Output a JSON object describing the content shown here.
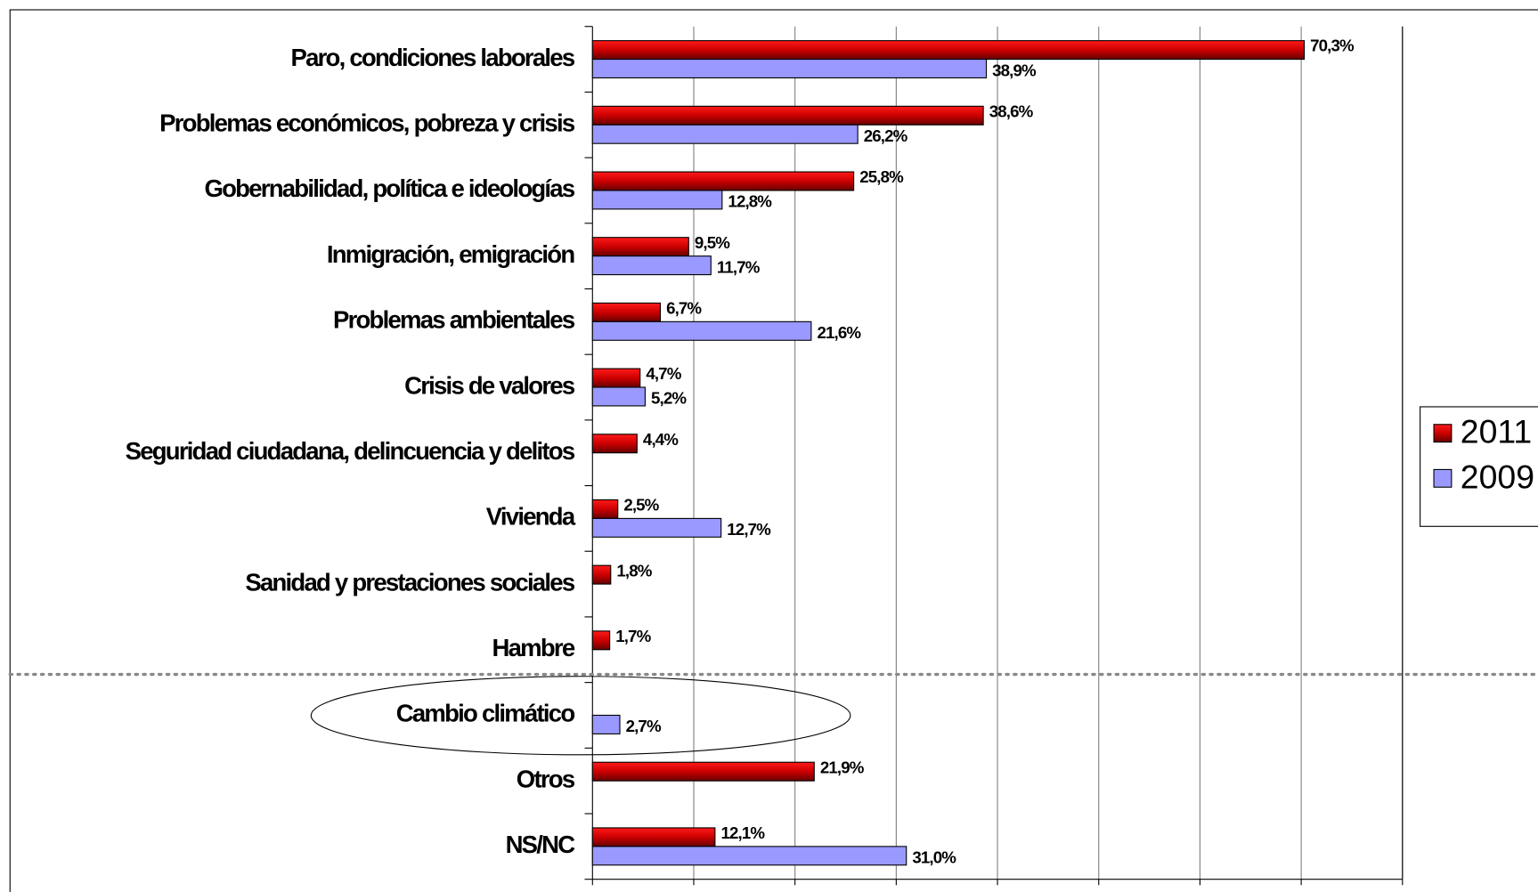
{
  "chart_data": {
    "type": "bar",
    "orientation": "horizontal",
    "categories": [
      "Paro, condiciones laborales",
      "Problemas económicos, pobreza y crisis",
      "Gobernabilidad, política e ideologías",
      "Inmigración, emigración",
      "Problemas ambientales",
      "Crisis de valores",
      "Seguridad ciudadana, delincuencia y delitos",
      "Vivienda",
      "Sanidad y prestaciones sociales",
      "Hambre",
      "Cambio climático",
      "Otros",
      "NS/NC"
    ],
    "series": [
      {
        "name": "2011",
        "color": "#cc0000",
        "values": [
          70.3,
          38.6,
          25.8,
          9.5,
          6.7,
          4.7,
          4.4,
          2.5,
          1.8,
          1.7,
          null,
          21.9,
          12.1
        ],
        "value_labels": [
          "70,3%",
          "38,6%",
          "25,8%",
          "9,5%",
          "6,7%",
          "4,7%",
          "4,4%",
          "2,5%",
          "1,8%",
          "1,7%",
          null,
          "21,9%",
          "12,1%"
        ]
      },
      {
        "name": "2009",
        "color": "#9999ff",
        "values": [
          38.9,
          26.2,
          12.8,
          11.7,
          21.6,
          5.2,
          null,
          12.7,
          null,
          null,
          2.7,
          null,
          31.0
        ],
        "value_labels": [
          "38,9%",
          "26,2%",
          "12,8%",
          "11,7%",
          "21,6%",
          "5,2%",
          null,
          "12,7%",
          null,
          null,
          "2,7%",
          null,
          "31,0%"
        ]
      }
    ],
    "xlim": [
      0,
      80
    ],
    "xticks": [
      0,
      10,
      20,
      30,
      40,
      50,
      60,
      70,
      80
    ],
    "grid": true,
    "legend": "right"
  }
}
